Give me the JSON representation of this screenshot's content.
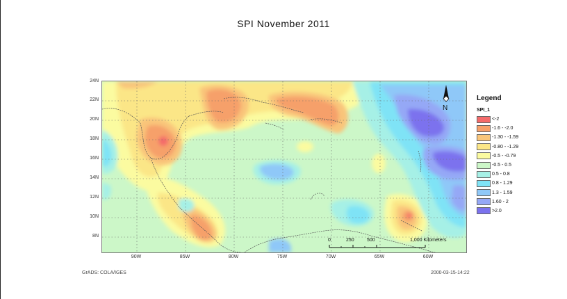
{
  "title": "SPI  November 2011",
  "y_ticks": [
    "24N",
    "22N",
    "20N",
    "18N",
    "16N",
    "14N",
    "12N",
    "10N",
    "8N"
  ],
  "x_ticks": [
    "90W",
    "85W",
    "80W",
    "75W",
    "70W",
    "65W",
    "60W"
  ],
  "legend": {
    "title": "Legend",
    "field": "SPI_1",
    "items": [
      {
        "label": "<-2",
        "color": "#f46a6a"
      },
      {
        "label": "-1.6 - -2.0",
        "color": "#f6a06a"
      },
      {
        "label": "-1.30 - -1.59",
        "color": "#f9c57a"
      },
      {
        "label": "-0.80 - -1.29",
        "color": "#fbe687"
      },
      {
        "label": "-0.5 - -0.79",
        "color": "#fbfba0"
      },
      {
        "label": "-0.5 - 0.5",
        "color": "#ccf7c8"
      },
      {
        "label": "0.5 - 0.8",
        "color": "#a6f0e6"
      },
      {
        "label": "0.8 - 1.29",
        "color": "#7fe3f6"
      },
      {
        "label": "1.3 - 1.59",
        "color": "#8fc8f8"
      },
      {
        "label": "1.60 - 2",
        "color": "#95a8f6"
      },
      {
        "label": ">2.0",
        "color": "#7b72ee"
      }
    ]
  },
  "scale": {
    "labels": [
      "0",
      "250",
      "500",
      "1,000 Kilometers"
    ]
  },
  "footer": {
    "left": "GrADS: COLA/IGES",
    "right": "2000-03-15-14:22"
  },
  "north_label": "N"
}
